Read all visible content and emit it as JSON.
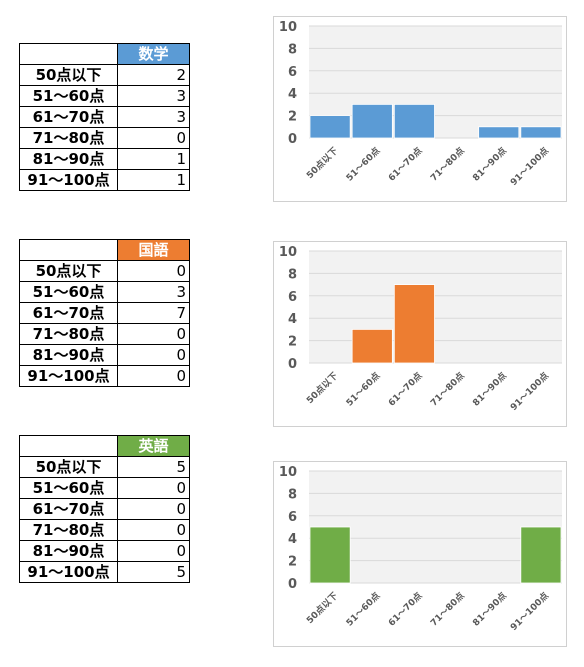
{
  "categories": [
    "50点以下",
    "51～60点",
    "61～70点",
    "71～80点",
    "81～90点",
    "91～100点"
  ],
  "chart_data": [
    {
      "type": "bar",
      "subject": "数学",
      "color": "#5B9BD5",
      "categories": [
        "50点以下",
        "51～60点",
        "61～70点",
        "71～80点",
        "81～90点",
        "91～100点"
      ],
      "values": [
        2,
        3,
        3,
        0,
        1,
        1
      ],
      "ylim": [
        0,
        10
      ],
      "yticks": [
        0,
        2,
        4,
        6,
        8,
        10
      ],
      "grid": true,
      "legend": "none"
    },
    {
      "type": "bar",
      "subject": "国語",
      "color": "#ED7D31",
      "categories": [
        "50点以下",
        "51～60点",
        "61～70点",
        "71～80点",
        "81～90点",
        "91～100点"
      ],
      "values": [
        0,
        3,
        7,
        0,
        0,
        0
      ],
      "ylim": [
        0,
        10
      ],
      "yticks": [
        0,
        2,
        4,
        6,
        8,
        10
      ],
      "grid": true,
      "legend": "none"
    },
    {
      "type": "bar",
      "subject": "英語",
      "color": "#70AD47",
      "categories": [
        "50点以下",
        "51～60点",
        "61～70点",
        "71～80点",
        "81～90点",
        "91～100点"
      ],
      "values": [
        5,
        0,
        0,
        0,
        0,
        5
      ],
      "ylim": [
        0,
        10
      ],
      "yticks": [
        0,
        2,
        4,
        6,
        8,
        10
      ],
      "grid": true,
      "legend": "none"
    }
  ]
}
